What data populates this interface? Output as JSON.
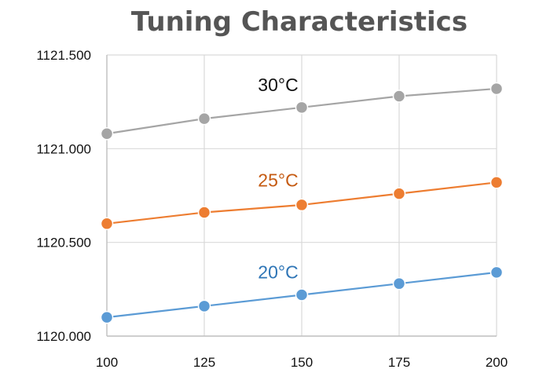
{
  "chart_data": {
    "type": "line",
    "title": "Tuning Characteristics",
    "xlabel": "",
    "ylabel": "",
    "x": [
      100,
      125,
      150,
      175,
      200
    ],
    "xlim": [
      100,
      200
    ],
    "ylim": [
      1120.0,
      1121.5
    ],
    "y_ticks": [
      "1120.000",
      "1120.500",
      "1121.000",
      "1121.500"
    ],
    "x_ticks": [
      "100",
      "125",
      "150",
      "175",
      "200"
    ],
    "grid": true,
    "legend": "none",
    "series": [
      {
        "name": "30°C",
        "color": "#a5a5a5",
        "label_color": "#111111",
        "values": [
          1121.08,
          1121.16,
          1121.22,
          1121.28,
          1121.32
        ]
      },
      {
        "name": "25°C",
        "color": "#ed7d31",
        "label_color": "#c55a11",
        "values": [
          1120.6,
          1120.66,
          1120.7,
          1120.76,
          1120.82
        ]
      },
      {
        "name": "20°C",
        "color": "#5b9bd5",
        "label_color": "#2e75b6",
        "values": [
          1120.1,
          1120.16,
          1120.22,
          1120.28,
          1120.34
        ]
      }
    ]
  }
}
